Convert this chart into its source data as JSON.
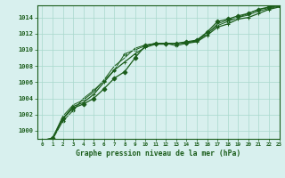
{
  "title": "Graphe pression niveau de la mer (hPa)",
  "background_color": "#d8f0ee",
  "grid_color": "#a8d8cc",
  "line_color": "#1a5c1a",
  "marker_color": "#1a5c1a",
  "xlim": [
    -0.5,
    23
  ],
  "ylim": [
    999.0,
    1015.5
  ],
  "ytick_values": [
    1000,
    1002,
    1004,
    1006,
    1008,
    1010,
    1012,
    1014
  ],
  "series": [
    [
      998.8,
      999.1,
      1001.5,
      1002.8,
      1003.3,
      1004.0,
      1005.2,
      1006.5,
      1007.3,
      1009.0,
      1010.5,
      1010.8,
      1010.8,
      1010.8,
      1011.0,
      1011.2,
      1012.2,
      1013.5,
      1013.8,
      1014.2,
      1014.5,
      1015.0,
      1015.3,
      1015.5
    ],
    [
      998.8,
      999.0,
      1001.5,
      1003.0,
      1003.5,
      1004.5,
      1006.0,
      1007.5,
      1008.5,
      1009.5,
      1010.3,
      1010.7,
      1010.7,
      1010.8,
      1010.8,
      1011.0,
      1011.8,
      1012.8,
      1013.2,
      1013.8,
      1014.0,
      1014.5,
      1015.0,
      1015.3
    ],
    [
      998.8,
      998.9,
      1001.2,
      1002.5,
      1004.0,
      1005.0,
      1006.2,
      1007.5,
      1009.5,
      1010.0,
      1010.5,
      1010.8,
      1010.8,
      1010.5,
      1010.8,
      1011.2,
      1012.0,
      1013.0,
      1013.5,
      1014.0,
      1014.5,
      1015.0,
      1015.2,
      1015.5
    ],
    [
      998.8,
      999.1,
      1001.8,
      1003.2,
      1003.8,
      1004.8,
      1006.3,
      1008.0,
      1009.0,
      1010.2,
      1010.6,
      1010.8,
      1010.8,
      1010.8,
      1010.9,
      1011.1,
      1012.0,
      1013.2,
      1013.7,
      1014.0,
      1014.3,
      1014.8,
      1015.1,
      1015.4
    ]
  ]
}
